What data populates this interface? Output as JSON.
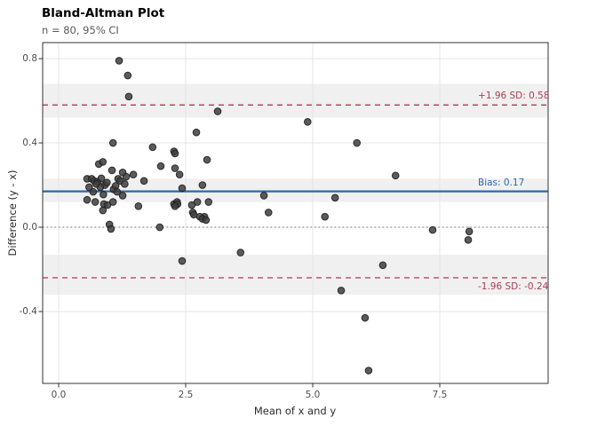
{
  "header": {
    "title": "Bland-Altman Plot",
    "subtitle": "n = 80, 95% CI"
  },
  "chart_data": {
    "type": "scatter",
    "title": "Bland-Altman Plot",
    "subtitle": "n = 80, 95% CI",
    "xlabel": "Mean of x and y",
    "ylabel": "Difference (y - x)",
    "n": 80,
    "ci_label": "95% CI",
    "xlim": [
      -0.315,
      9.633
    ],
    "ylim": [
      -0.741,
      0.876
    ],
    "x_ticks": {
      "values": [
        0,
        2.5,
        5,
        7.5
      ],
      "labels": [
        "0.0",
        "2.5",
        "5.0",
        "7.5"
      ]
    },
    "y_ticks": {
      "values": [
        0.8,
        0.4,
        0,
        -0.4
      ],
      "labels": [
        "0.8",
        "0.4",
        "0.0",
        "-0.4"
      ]
    },
    "grid": "major",
    "legend": "none",
    "reference_lines": [
      {
        "id": "upper_loa",
        "y": 0.58,
        "style": "dashed",
        "color": "#AE3B52",
        "label": "+1.96 SD: 0.58",
        "ci_band": [
          0.52,
          0.68
        ],
        "label_side": "above"
      },
      {
        "id": "bias",
        "y": 0.17,
        "style": "solid",
        "color": "#2B69AE",
        "label": "Bias: 0.17",
        "ci_band": [
          0.12,
          0.23
        ],
        "label_side": "above"
      },
      {
        "id": "lower_loa",
        "y": -0.24,
        "style": "dashed",
        "color": "#AE3B52",
        "label": "-1.96 SD: -0.24",
        "ci_band": [
          -0.32,
          -0.13
        ],
        "label_side": "below"
      },
      {
        "id": "zero",
        "y": 0,
        "style": "dotted",
        "color": "#737373",
        "label": "",
        "label_side": "none"
      }
    ],
    "points": [
      [
        1.19,
        0.79
      ],
      [
        1.36,
        0.72
      ],
      [
        1.38,
        0.62
      ],
      [
        3.13,
        0.55
      ],
      [
        2.71,
        0.45
      ],
      [
        1.07,
        0.4
      ],
      [
        1.85,
        0.38
      ],
      [
        2.27,
        0.36
      ],
      [
        0.79,
        0.3
      ],
      [
        0.87,
        0.31
      ],
      [
        2.01,
        0.29
      ],
      [
        2.29,
        0.28
      ],
      [
        2.92,
        0.32
      ],
      [
        1.05,
        0.27
      ],
      [
        1.26,
        0.26
      ],
      [
        2.38,
        0.25
      ],
      [
        1.33,
        0.24
      ],
      [
        1.47,
        0.25
      ],
      [
        0.56,
        0.23
      ],
      [
        0.65,
        0.23
      ],
      [
        0.7,
        0.22
      ],
      [
        0.77,
        0.215
      ],
      [
        1.17,
        0.23
      ],
      [
        1.21,
        0.22
      ],
      [
        1.68,
        0.22
      ],
      [
        0.91,
        0.2
      ],
      [
        0.82,
        0.19
      ],
      [
        1.08,
        0.18
      ],
      [
        1.26,
        0.15
      ],
      [
        0.56,
        0.13
      ],
      [
        0.72,
        0.12
      ],
      [
        0.89,
        0.11
      ],
      [
        0.96,
        0.105
      ],
      [
        1.07,
        0.12
      ],
      [
        1.57,
        0.1
      ],
      [
        2.27,
        0.11
      ],
      [
        2.33,
        0.12
      ],
      [
        2.62,
        0.105
      ],
      [
        2.73,
        0.12
      ],
      [
        2.95,
        0.12
      ],
      [
        0.87,
        0.08
      ],
      [
        2.64,
        0.07
      ],
      [
        2.87,
        0.05
      ],
      [
        2.29,
        0.35
      ],
      [
        2.43,
        0.185
      ],
      [
        2.83,
        0.2
      ],
      [
        2.34,
        0.11
      ],
      [
        2.29,
        0.1
      ],
      [
        2.78,
        0.05
      ],
      [
        1.0,
        0.013
      ],
      [
        1.99,
        0.0
      ],
      [
        1.03,
        -0.008
      ],
      [
        4.9,
        0.5
      ],
      [
        5.87,
        0.4
      ],
      [
        6.63,
        0.245
      ],
      [
        4.04,
        0.15
      ],
      [
        5.44,
        0.14
      ],
      [
        4.13,
        0.07
      ],
      [
        5.24,
        0.05
      ],
      [
        2.66,
        0.06
      ],
      [
        2.83,
        0.04
      ],
      [
        2.9,
        0.034
      ],
      [
        2.43,
        -0.16
      ],
      [
        3.58,
        -0.12
      ],
      [
        6.38,
        -0.18
      ],
      [
        5.56,
        -0.3
      ],
      [
        6.03,
        -0.43
      ],
      [
        6.1,
        -0.68
      ],
      [
        7.36,
        -0.013
      ],
      [
        8.08,
        -0.02
      ],
      [
        8.06,
        -0.06
      ],
      [
        0.74,
        0.205
      ],
      [
        0.84,
        0.232
      ],
      [
        0.95,
        0.212
      ],
      [
        1.12,
        0.196
      ],
      [
        0.68,
        0.168
      ],
      [
        0.88,
        0.155
      ],
      [
        1.3,
        0.205
      ],
      [
        1.15,
        0.168
      ],
      [
        0.6,
        0.19
      ]
    ],
    "point_style": {
      "fill": "#3E3E3E",
      "stroke": "#1F1F1F",
      "radius": 3.8,
      "opacity": 0.85
    },
    "colors": {
      "band_fill": "#000000",
      "band_opacity": 0.06,
      "grid_major": "#E4E4E4",
      "panel_border": "#333333",
      "tick_mark": "#333333",
      "background": "#FFFFFF"
    }
  }
}
